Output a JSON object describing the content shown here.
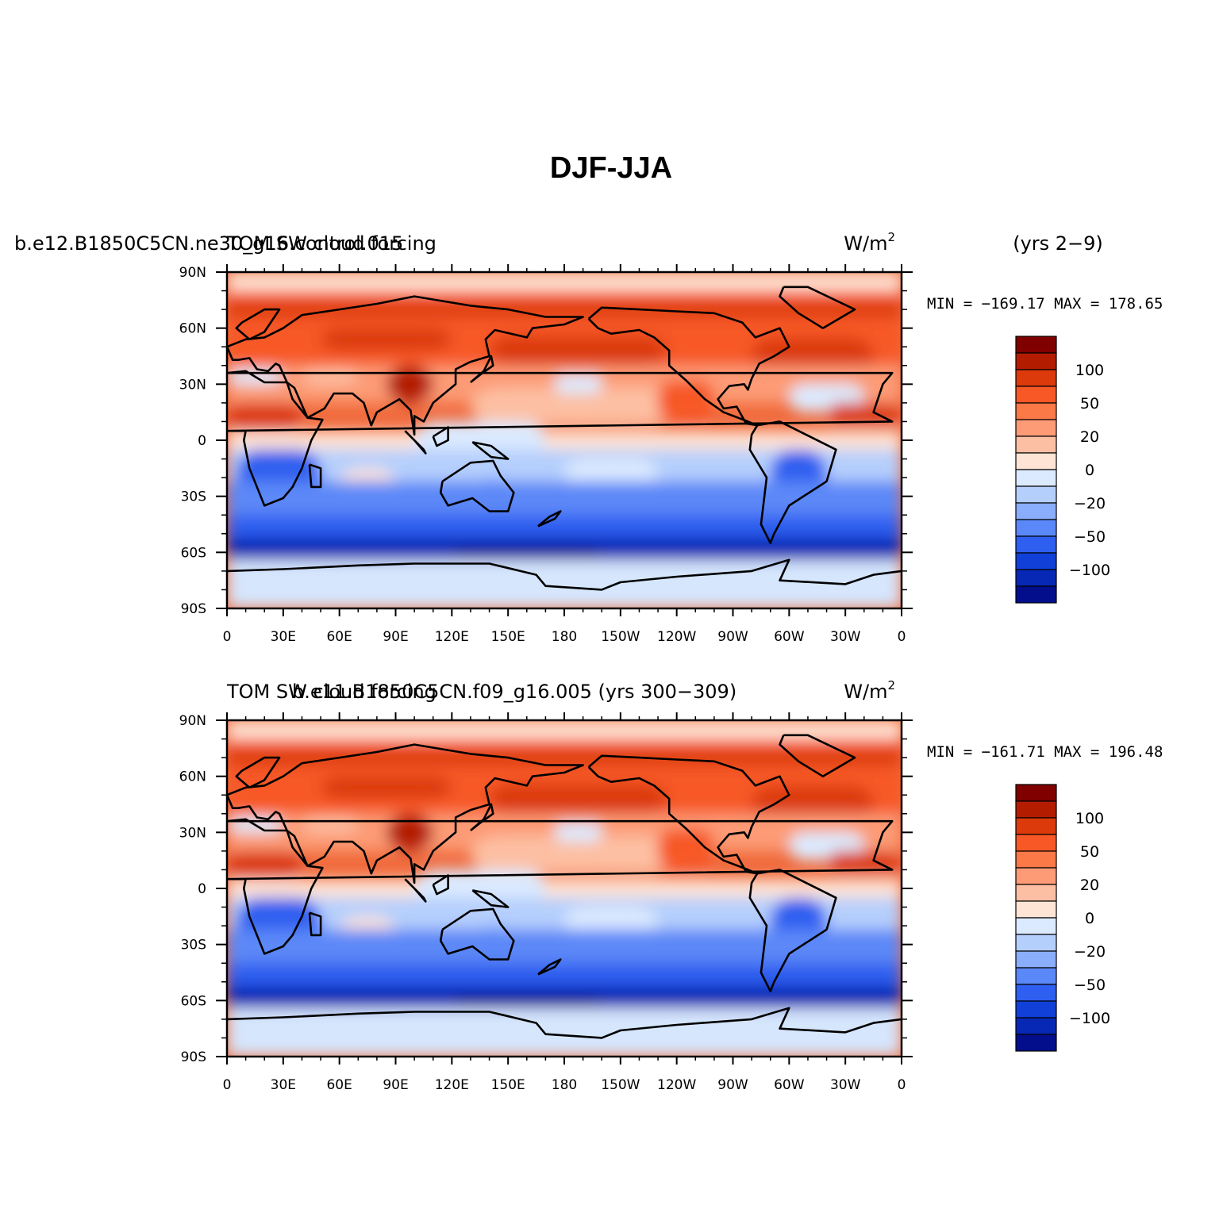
{
  "figure": {
    "title": "DJF-JJA"
  },
  "panels": [
    {
      "left_title": "b.e12.B1850C5CN.ne30_g16.control.015",
      "center_title": "TOM SW cloud forcing",
      "units": "W/m",
      "units_exp": "2",
      "years": "(yrs 2−9)",
      "minmax": "MIN = −169.17  MAX = 178.65"
    },
    {
      "left_title": "b.e11.B1850C5CN.f09_g16.005 (yrs 300−309)",
      "center_title": "TOM SW cloud forcing",
      "units": "W/m",
      "units_exp": "2",
      "years": "",
      "minmax": "MIN = −161.71  MAX = 196.48"
    }
  ],
  "axes": {
    "lon_labels": [
      "0",
      "30E",
      "60E",
      "90E",
      "120E",
      "150E",
      "180",
      "150W",
      "120W",
      "90W",
      "60W",
      "30W",
      "0"
    ],
    "lat_labels": [
      "90N",
      "60N",
      "30N",
      "0",
      "30S",
      "60S",
      "90S"
    ]
  },
  "colorbar": {
    "labels": [
      "100",
      "50",
      "20",
      "0",
      "−20",
      "−50",
      "−100"
    ],
    "colors": [
      "#800000",
      "#b41c00",
      "#dc3a0a",
      "#f75825",
      "#fb7847",
      "#fc9b76",
      "#fdbfa3",
      "#fee4d5",
      "#dbeafe",
      "#b5cffd",
      "#8aaefb",
      "#5b88f8",
      "#2e5ff0",
      "#1140d9",
      "#0628b5",
      "#020e8c"
    ]
  },
  "map_colors": {
    "antarctic": "#d5e6fd",
    "coast": "#000000"
  }
}
